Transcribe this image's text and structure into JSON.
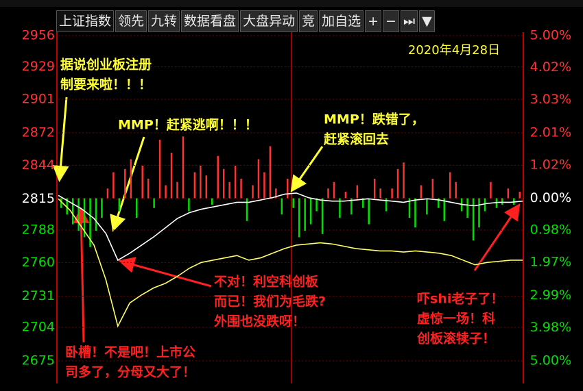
{
  "toolbar": [
    "上证指数",
    "领先",
    "九转",
    "数据看盘",
    "大盘异动",
    "竞",
    "加自选",
    "+",
    "−",
    "⏭",
    "▼"
  ],
  "chart_data": {
    "type": "line",
    "date": "2020年4月28日",
    "ylim": [
      2675,
      2956
    ],
    "yticks": [
      2956,
      2929,
      2901,
      2872,
      2844,
      2815,
      2788,
      2760,
      2731,
      2704,
      2675
    ],
    "y2lim": [
      -5,
      5
    ],
    "y2ticks": [
      {
        "value": 5,
        "label": "5.00%"
      },
      {
        "value": 4.02,
        "label": "4.02%"
      },
      {
        "value": 3.03,
        "label": "3.03%"
      },
      {
        "value": 2.01,
        "label": "2.01%"
      },
      {
        "value": 1.02,
        "label": "1.02%"
      },
      {
        "value": 0,
        "label": "0.00%"
      },
      {
        "value": -0.98,
        "label": "0.98%"
      },
      {
        "value": -1.97,
        "label": "1.97%"
      },
      {
        "value": -2.99,
        "label": "2.99%"
      },
      {
        "value": -3.98,
        "label": "3.98%"
      },
      {
        "value": -5,
        "label": "5.00%"
      }
    ],
    "series": [
      {
        "color": "#ffffff",
        "values": [
          2818,
          2812,
          2806,
          2798,
          2785,
          2762,
          2768,
          2775,
          2782,
          2790,
          2798,
          2803,
          2806,
          2808,
          2810,
          2812,
          2812,
          2814,
          2816,
          2819,
          2820,
          2816,
          2814,
          2813,
          2813,
          2814,
          2815,
          2814,
          2813,
          2812,
          2814,
          2815,
          2814,
          2812,
          2810,
          2809,
          2811,
          2812,
          2812,
          2813
        ]
      },
      {
        "color": "#ffff66",
        "values": [
          2815,
          2805,
          2790,
          2775,
          2745,
          2705,
          2725,
          2732,
          2738,
          2742,
          2748,
          2755,
          2760,
          2762,
          2764,
          2766,
          2762,
          2764,
          2768,
          2772,
          2775,
          2776,
          2777,
          2776,
          2774,
          2772,
          2771,
          2770,
          2770,
          2769,
          2770,
          2769,
          2768,
          2766,
          2762,
          2758,
          2760,
          2761,
          2762,
          2762
        ]
      }
    ],
    "bars": {
      "axis": "y2",
      "up_color": "#ff3232",
      "down_color": "#00e000",
      "values": [
        -0.3,
        -0.5,
        -0.8,
        -1.0,
        -1.2,
        -1.5,
        -1.0,
        -0.6,
        0.3,
        0.8,
        -0.4,
        0.9,
        1.2,
        -0.6,
        1.0,
        0.6,
        -0.3,
        1.8,
        0.4,
        1.4,
        0.5,
        1.9,
        -0.4,
        0.8,
        1.0,
        0.7,
        -0.2,
        1.3,
        0.9,
        0.5,
        1.0,
        0.6,
        -0.7,
        0.4,
        1.2,
        0.8,
        1.6,
        0.3,
        -0.5,
        0.6,
        -0.3,
        -1.2,
        -1.0,
        -0.8,
        -0.4,
        -1.1,
        0.3,
        0.5,
        -0.6,
        0.2,
        -0.5,
        0.4,
        -0.3,
        -0.8,
        0.6,
        0.3,
        -0.4,
        0.3,
        0.9,
        1.1,
        -0.6,
        -0.9,
        0.4,
        -0.5,
        0.6,
        -0.3,
        -0.7,
        0.8,
        0.5,
        -0.4,
        -0.6,
        -1.3,
        -0.9,
        -0.4,
        0.5,
        -0.3,
        -0.2,
        0.3,
        -0.2,
        0.2
      ]
    },
    "annotations": [
      {
        "color": "#ffff33",
        "lines": [
          "据说创业板注册",
          "制要来啦！！！"
        ]
      },
      {
        "color": "#ffff33",
        "lines": [
          "MMP！赶紧逃啊！！！"
        ]
      },
      {
        "color": "#ffff33",
        "lines": [
          "MMP！跌错了，",
          "赶紧滚回去"
        ]
      },
      {
        "color": "#ff2020",
        "lines": [
          "不对！利空科创板",
          "而已！我们为毛跌?",
          "外围也没跌呀！"
        ]
      },
      {
        "color": "#ff2020",
        "lines": [
          "吓shi老子了！",
          "虚惊一场！科",
          "创板滚犊子！"
        ]
      },
      {
        "color": "#ff2020",
        "lines": [
          "卧槽！不是吧！上市公",
          "司多了，分母又大了！"
        ]
      }
    ]
  }
}
